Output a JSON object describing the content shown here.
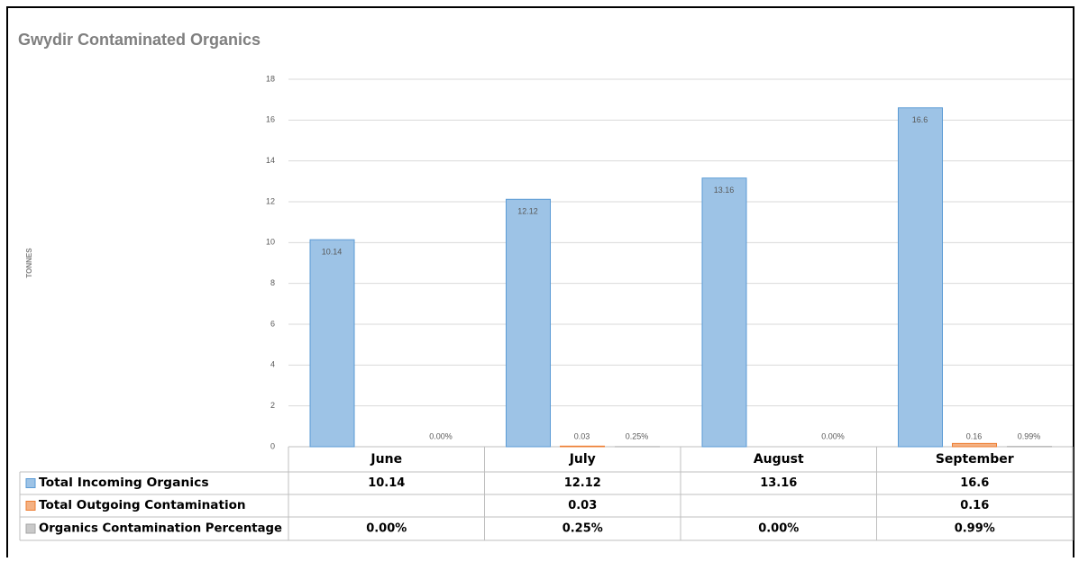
{
  "chart_data": {
    "type": "bar",
    "title": "Gwydir Contaminated Organics",
    "y_label": "TONNES",
    "categories": [
      "June",
      "July",
      "August",
      "September"
    ],
    "series": [
      {
        "name": "Total Incoming Organics",
        "color": "#9dc3e6",
        "values": [
          10.14,
          12.12,
          13.16,
          16.6
        ]
      },
      {
        "name": "Total Outgoing Contamination",
        "color": "#f4b183",
        "values": [
          null,
          0.03,
          null,
          0.16
        ]
      },
      {
        "name": "Organics Contamination Percentage",
        "color": "#c9c9c9",
        "values": [
          0,
          0.0025,
          0,
          0.0099
        ],
        "value_labels": [
          "0.00%",
          "0.25%",
          "0.00%",
          "0.99%"
        ]
      }
    ],
    "ylim": [
      0,
      18
    ],
    "yticks": [
      0,
      2,
      4,
      6,
      8,
      10,
      12,
      14,
      16,
      18
    ],
    "grid": true
  }
}
